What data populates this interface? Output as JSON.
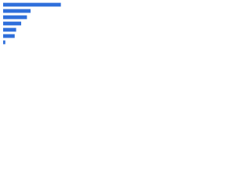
{
  "chart_data": {
    "type": "bar",
    "orientation": "horizontal",
    "categories": [
      null,
      null,
      null,
      null,
      null,
      null,
      null
    ],
    "values": [
      80,
      38,
      33,
      25,
      18,
      16,
      3
    ],
    "color": "#2f6fdb",
    "xlim": [
      0,
      100
    ]
  }
}
